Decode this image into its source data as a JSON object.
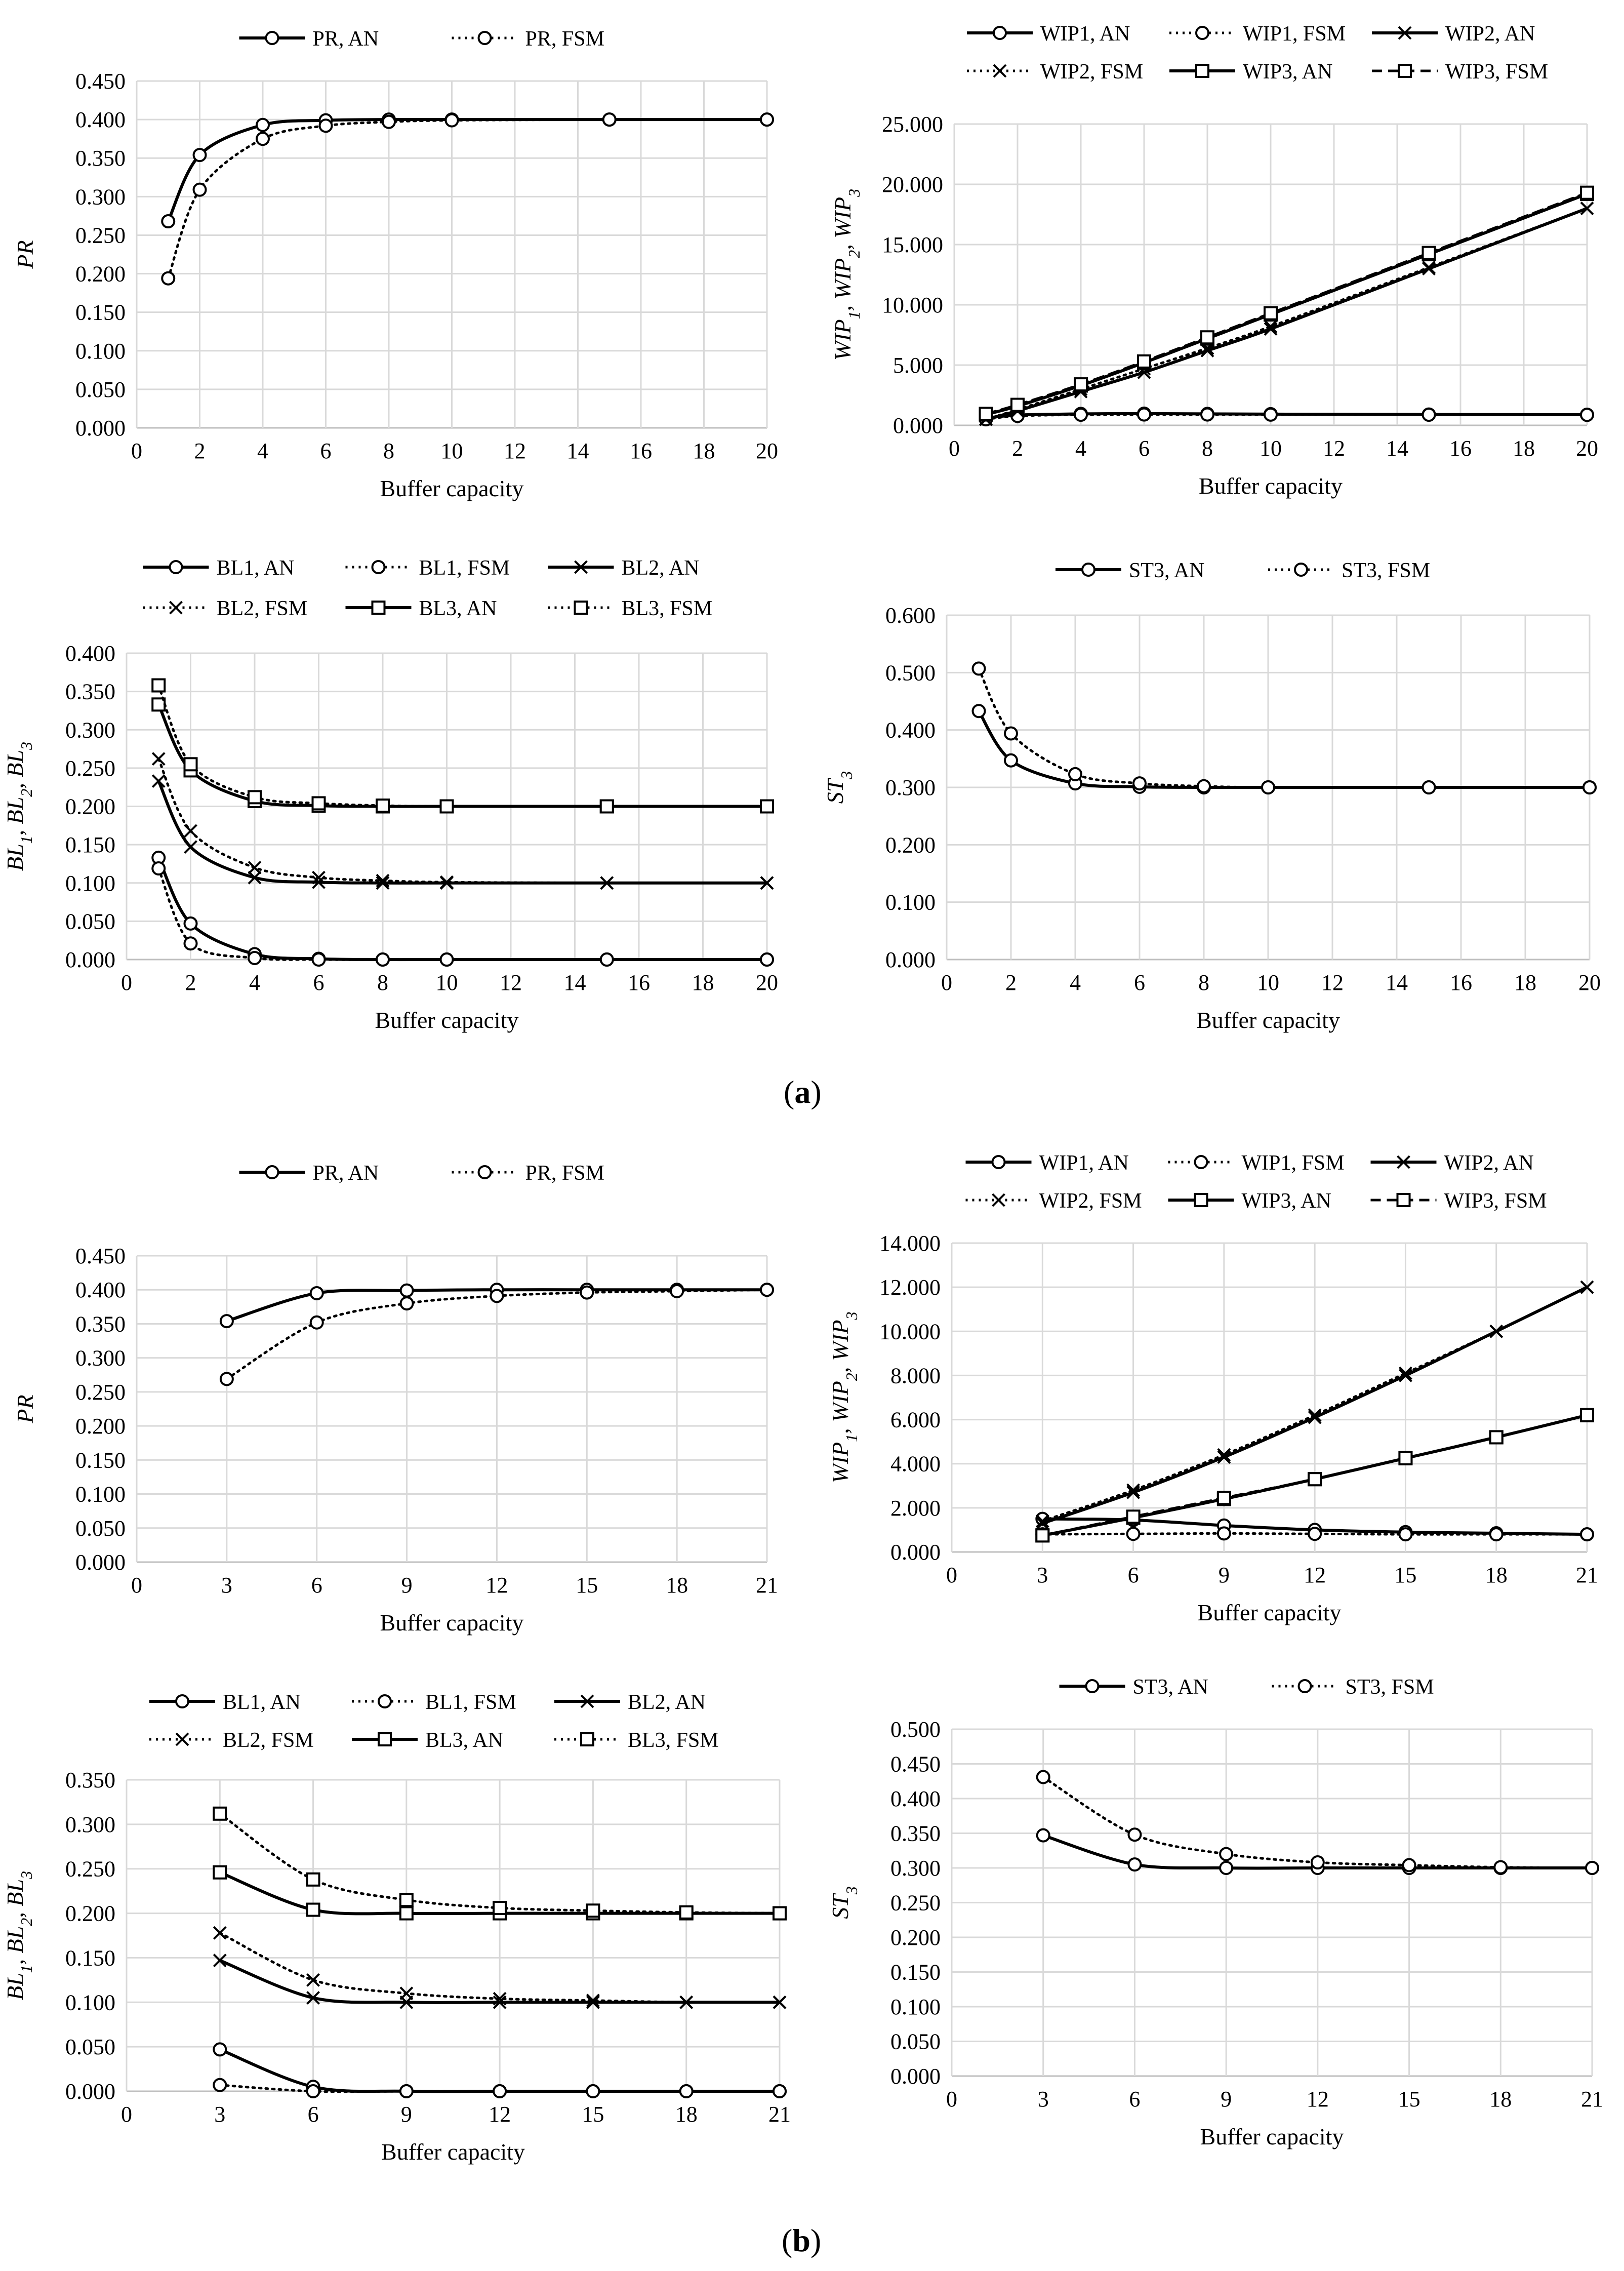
{
  "panel_labels": {
    "a": "a",
    "b": "b"
  },
  "colors": {
    "line": "#000000",
    "grid": "#d9d9d9",
    "axis": "#bfbfbf",
    "background": "#ffffff"
  },
  "chart_data": [
    {
      "id": "a_pr",
      "type": "line",
      "title": "",
      "xlabel": "Buffer capacity",
      "ylabel": "PR",
      "ylabel_sub": [],
      "xlim": [
        0,
        20
      ],
      "xticks": [
        0,
        2,
        4,
        6,
        8,
        10,
        12,
        14,
        16,
        18,
        20
      ],
      "ylim": [
        0,
        0.45
      ],
      "yticks": [
        0,
        0.05,
        0.1,
        0.15,
        0.2,
        0.25,
        0.3,
        0.35,
        0.4,
        0.45
      ],
      "ydecimals": 3,
      "legend_position": "top",
      "legend_cols": 2,
      "x": [
        1,
        2,
        4,
        6,
        8,
        10,
        15,
        20
      ],
      "series": [
        {
          "name": "PR, AN",
          "dash": "solid",
          "marker": "circle",
          "values": [
            0.268,
            0.354,
            0.393,
            0.399,
            0.4,
            0.4,
            0.4,
            0.4
          ]
        },
        {
          "name": "PR, FSM",
          "dash": "dotted",
          "marker": "circle",
          "values": [
            0.194,
            0.309,
            0.375,
            0.392,
            0.397,
            0.399,
            0.4,
            0.4
          ]
        }
      ]
    },
    {
      "id": "a_wip",
      "type": "line",
      "title": "",
      "xlabel": "Buffer capacity",
      "ylabel": "WIP",
      "ylabel_sub": [
        "1",
        "2",
        "3"
      ],
      "xlim": [
        0,
        20
      ],
      "xticks": [
        0,
        2,
        4,
        6,
        8,
        10,
        12,
        14,
        16,
        18,
        20
      ],
      "ylim": [
        0,
        25
      ],
      "yticks": [
        0,
        5,
        10,
        15,
        20,
        25
      ],
      "ydecimals": 3,
      "legend_position": "top",
      "legend_cols": 3,
      "x": [
        1,
        2,
        4,
        6,
        8,
        10,
        15,
        20
      ],
      "series": [
        {
          "name": "WIP1, AN",
          "dash": "solid",
          "marker": "circle",
          "values": [
            0.6,
            0.85,
            0.95,
            0.97,
            0.95,
            0.93,
            0.9,
            0.88
          ]
        },
        {
          "name": "WIP1, FSM",
          "dash": "dotted",
          "marker": "circle",
          "values": [
            0.5,
            0.78,
            0.88,
            0.9,
            0.9,
            0.89,
            0.88,
            0.87
          ]
        },
        {
          "name": "WIP2, AN",
          "dash": "solid",
          "marker": "x",
          "values": [
            0.5,
            1.2,
            2.8,
            4.4,
            6.2,
            8.0,
            13.0,
            18.0
          ]
        },
        {
          "name": "WIP2, FSM",
          "dash": "dotted",
          "marker": "x",
          "values": [
            0.5,
            1.3,
            3.0,
            4.7,
            6.4,
            8.2,
            13.1,
            18.0
          ]
        },
        {
          "name": "WIP3, AN",
          "dash": "solid",
          "marker": "square",
          "values": [
            0.9,
            1.6,
            3.3,
            5.2,
            7.2,
            9.2,
            14.2,
            19.2
          ]
        },
        {
          "name": "WIP3, FSM",
          "dash": "dashed",
          "marker": "square",
          "values": [
            0.95,
            1.7,
            3.4,
            5.3,
            7.3,
            9.3,
            14.3,
            19.3
          ]
        }
      ]
    },
    {
      "id": "a_bl",
      "type": "line",
      "title": "",
      "xlabel": "Buffer capacity",
      "ylabel": "BL",
      "ylabel_sub": [
        "1",
        "2",
        "3"
      ],
      "xlim": [
        0,
        20
      ],
      "xticks": [
        0,
        2,
        4,
        6,
        8,
        10,
        12,
        14,
        16,
        18,
        20
      ],
      "ylim": [
        0,
        0.4
      ],
      "yticks": [
        0,
        0.05,
        0.1,
        0.15,
        0.2,
        0.25,
        0.3,
        0.35,
        0.4
      ],
      "ydecimals": 3,
      "legend_position": "top",
      "legend_cols": 3,
      "x": [
        1,
        2,
        4,
        6,
        8,
        10,
        15,
        20
      ],
      "series": [
        {
          "name": "BL1, AN",
          "dash": "solid",
          "marker": "circle",
          "values": [
            0.133,
            0.047,
            0.007,
            0.001,
            0.0,
            0.0,
            0.0,
            0.0
          ]
        },
        {
          "name": "BL1, FSM",
          "dash": "dotted",
          "marker": "circle",
          "values": [
            0.119,
            0.021,
            0.002,
            0.0,
            0.0,
            0.0,
            0.0,
            0.0
          ]
        },
        {
          "name": "BL2, AN",
          "dash": "solid",
          "marker": "x",
          "values": [
            0.233,
            0.147,
            0.107,
            0.101,
            0.1,
            0.1,
            0.1,
            0.1
          ]
        },
        {
          "name": "BL2, FSM",
          "dash": "dotted",
          "marker": "x",
          "values": [
            0.262,
            0.168,
            0.12,
            0.107,
            0.103,
            0.101,
            0.1,
            0.1
          ]
        },
        {
          "name": "BL3, AN",
          "dash": "solid",
          "marker": "square",
          "values": [
            0.333,
            0.247,
            0.207,
            0.201,
            0.2,
            0.2,
            0.2,
            0.2
          ]
        },
        {
          "name": "BL3, FSM",
          "dash": "dotted",
          "marker": "square",
          "values": [
            0.358,
            0.255,
            0.212,
            0.204,
            0.201,
            0.2,
            0.2,
            0.2
          ]
        }
      ]
    },
    {
      "id": "a_st",
      "type": "line",
      "title": "",
      "xlabel": "Buffer capacity",
      "ylabel": "ST",
      "ylabel_sub": [
        "3"
      ],
      "xlim": [
        0,
        20
      ],
      "xticks": [
        0,
        2,
        4,
        6,
        8,
        10,
        12,
        14,
        16,
        18,
        20
      ],
      "ylim": [
        0,
        0.6
      ],
      "yticks": [
        0,
        0.1,
        0.2,
        0.3,
        0.4,
        0.5,
        0.6
      ],
      "ydecimals": 3,
      "legend_position": "top",
      "legend_cols": 2,
      "x": [
        1,
        2,
        4,
        6,
        8,
        10,
        15,
        20
      ],
      "series": [
        {
          "name": "ST3, AN",
          "dash": "solid",
          "marker": "circle",
          "values": [
            0.433,
            0.347,
            0.307,
            0.301,
            0.3,
            0.3,
            0.3,
            0.3
          ]
        },
        {
          "name": "ST3, FSM",
          "dash": "dotted",
          "marker": "circle",
          "values": [
            0.507,
            0.394,
            0.323,
            0.307,
            0.302,
            0.3,
            0.3,
            0.3
          ]
        }
      ]
    },
    {
      "id": "b_pr",
      "type": "line",
      "title": "",
      "xlabel": "Buffer capacity",
      "ylabel": "PR",
      "ylabel_sub": [],
      "xlim": [
        0,
        21
      ],
      "xticks": [
        0,
        3,
        6,
        9,
        12,
        15,
        18,
        21
      ],
      "ylim": [
        0,
        0.45
      ],
      "yticks": [
        0,
        0.05,
        0.1,
        0.15,
        0.2,
        0.25,
        0.3,
        0.35,
        0.4,
        0.45
      ],
      "ydecimals": 3,
      "legend_position": "top",
      "legend_cols": 2,
      "x": [
        3,
        6,
        9,
        12,
        15,
        18,
        21
      ],
      "series": [
        {
          "name": "PR, AN",
          "dash": "solid",
          "marker": "circle",
          "values": [
            0.354,
            0.395,
            0.399,
            0.4,
            0.4,
            0.4,
            0.4
          ]
        },
        {
          "name": "PR, FSM",
          "dash": "dotted",
          "marker": "circle",
          "values": [
            0.269,
            0.352,
            0.38,
            0.391,
            0.396,
            0.398,
            0.4
          ]
        }
      ]
    },
    {
      "id": "b_wip",
      "type": "line",
      "title": "",
      "xlabel": "Buffer capacity",
      "ylabel": "WIP",
      "ylabel_sub": [
        "1",
        "2",
        "3"
      ],
      "xlim": [
        0,
        21
      ],
      "xticks": [
        0,
        3,
        6,
        9,
        12,
        15,
        18,
        21
      ],
      "ylim": [
        0,
        14
      ],
      "yticks": [
        0,
        2,
        4,
        6,
        8,
        10,
        12,
        14
      ],
      "ydecimals": 3,
      "legend_position": "top",
      "legend_cols": 3,
      "x": [
        3,
        6,
        9,
        12,
        15,
        18,
        21
      ],
      "series": [
        {
          "name": "WIP1, AN",
          "dash": "solid",
          "marker": "circle",
          "values": [
            1.5,
            1.45,
            1.2,
            1.0,
            0.9,
            0.85,
            0.8
          ]
        },
        {
          "name": "WIP1, FSM",
          "dash": "dotted",
          "marker": "circle",
          "values": [
            0.8,
            0.82,
            0.84,
            0.82,
            0.8,
            0.8,
            0.8
          ]
        },
        {
          "name": "WIP2, AN",
          "dash": "solid",
          "marker": "x",
          "values": [
            1.3,
            2.7,
            4.3,
            6.1,
            8.0,
            10.0,
            12.0
          ]
        },
        {
          "name": "WIP2, FSM",
          "dash": "dotted",
          "marker": "x",
          "values": [
            1.4,
            2.8,
            4.4,
            6.2,
            8.1,
            10.0,
            12.0
          ]
        },
        {
          "name": "WIP3, AN",
          "dash": "solid",
          "marker": "square",
          "values": [
            0.75,
            1.55,
            2.4,
            3.3,
            4.25,
            5.2,
            6.2
          ]
        },
        {
          "name": "WIP3, FSM",
          "dash": "dashed",
          "marker": "square",
          "values": [
            0.75,
            1.6,
            2.45,
            3.3,
            4.25,
            5.2,
            6.2
          ]
        }
      ]
    },
    {
      "id": "b_bl",
      "type": "line",
      "title": "",
      "xlabel": "Buffer capacity",
      "ylabel": "BL",
      "ylabel_sub": [
        "1",
        "2",
        "3"
      ],
      "xlim": [
        0,
        21
      ],
      "xticks": [
        0,
        3,
        6,
        9,
        12,
        15,
        18,
        21
      ],
      "ylim": [
        0,
        0.35
      ],
      "yticks": [
        0,
        0.05,
        0.1,
        0.15,
        0.2,
        0.25,
        0.3,
        0.35
      ],
      "ydecimals": 3,
      "legend_position": "top",
      "legend_cols": 3,
      "x": [
        3,
        6,
        9,
        12,
        15,
        18,
        21
      ],
      "series": [
        {
          "name": "BL1, AN",
          "dash": "solid",
          "marker": "circle",
          "values": [
            0.047,
            0.005,
            0.0,
            0.0,
            0.0,
            0.0,
            0.0
          ]
        },
        {
          "name": "BL1, FSM",
          "dash": "dotted",
          "marker": "circle",
          "values": [
            0.007,
            0.0,
            0.0,
            0.0,
            0.0,
            0.0,
            0.0
          ]
        },
        {
          "name": "BL2, AN",
          "dash": "solid",
          "marker": "x",
          "values": [
            0.147,
            0.105,
            0.1,
            0.1,
            0.1,
            0.1,
            0.1
          ]
        },
        {
          "name": "BL2, FSM",
          "dash": "dotted",
          "marker": "x",
          "values": [
            0.178,
            0.125,
            0.11,
            0.104,
            0.102,
            0.1,
            0.1
          ]
        },
        {
          "name": "BL3, AN",
          "dash": "solid",
          "marker": "square",
          "values": [
            0.246,
            0.204,
            0.2,
            0.2,
            0.2,
            0.2,
            0.2
          ]
        },
        {
          "name": "BL3, FSM",
          "dash": "dotted",
          "marker": "square",
          "values": [
            0.312,
            0.238,
            0.215,
            0.206,
            0.203,
            0.201,
            0.2
          ]
        }
      ]
    },
    {
      "id": "b_st",
      "type": "line",
      "title": "",
      "xlabel": "Buffer capacity",
      "ylabel": "ST",
      "ylabel_sub": [
        "3"
      ],
      "xlim": [
        0,
        21
      ],
      "xticks": [
        0,
        3,
        6,
        9,
        12,
        15,
        18,
        21
      ],
      "ylim": [
        0,
        0.5
      ],
      "yticks": [
        0,
        0.05,
        0.1,
        0.15,
        0.2,
        0.25,
        0.3,
        0.35,
        0.4,
        0.45,
        0.5
      ],
      "ydecimals": 3,
      "legend_position": "top",
      "legend_cols": 2,
      "x": [
        3,
        6,
        9,
        12,
        15,
        18,
        21
      ],
      "series": [
        {
          "name": "ST3, AN",
          "dash": "solid",
          "marker": "circle",
          "values": [
            0.347,
            0.305,
            0.3,
            0.3,
            0.3,
            0.3,
            0.3
          ]
        },
        {
          "name": "ST3, FSM",
          "dash": "dotted",
          "marker": "circle",
          "values": [
            0.431,
            0.348,
            0.32,
            0.308,
            0.304,
            0.301,
            0.3
          ]
        }
      ]
    }
  ]
}
